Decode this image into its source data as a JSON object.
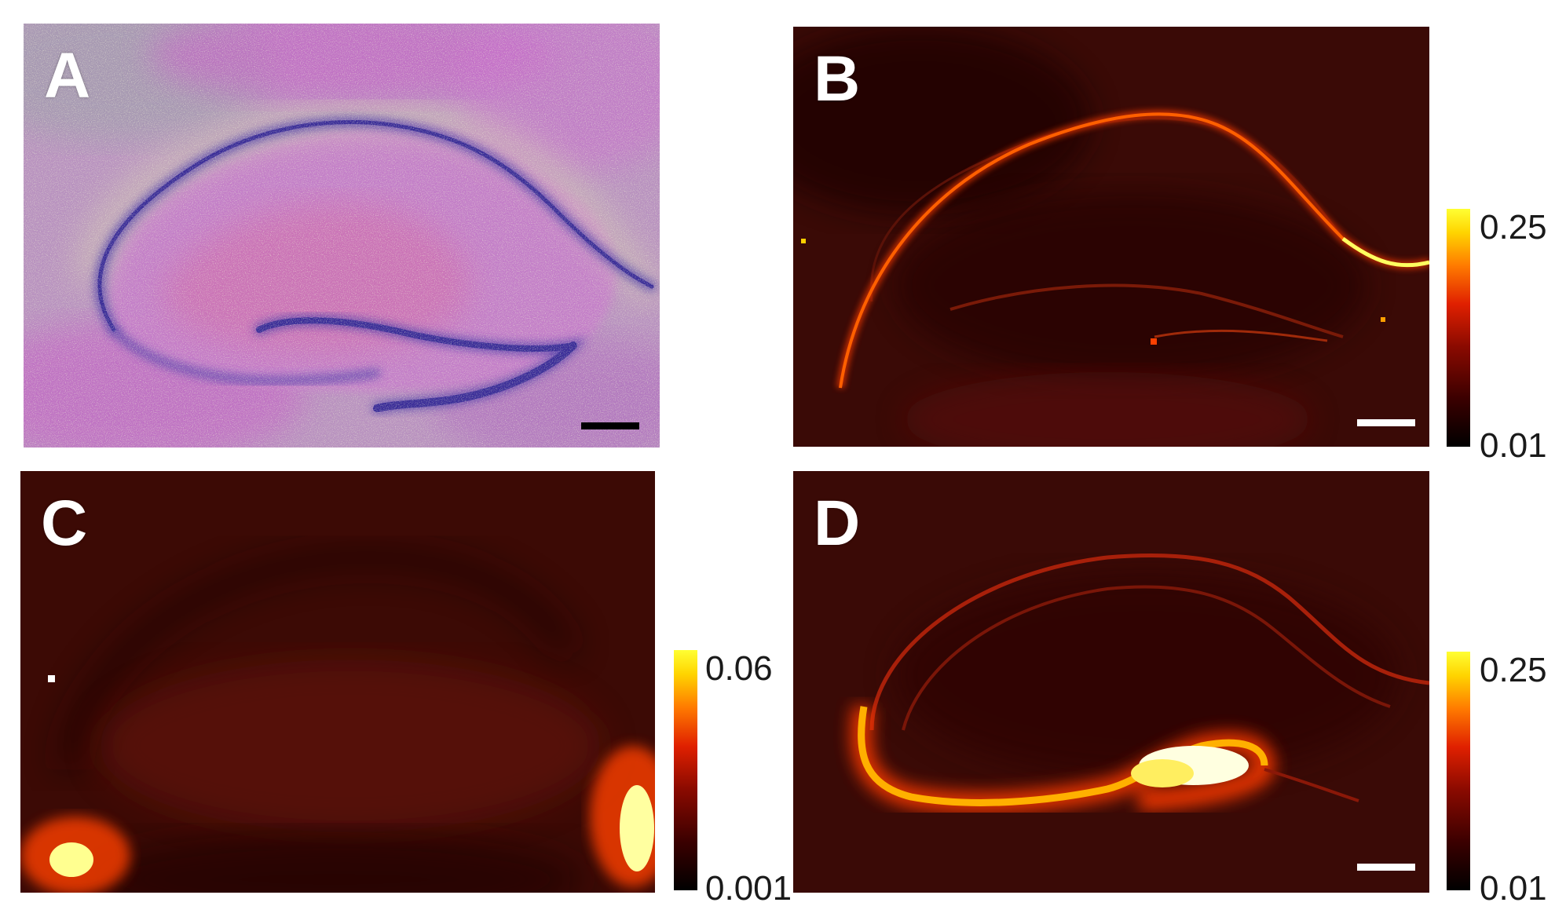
{
  "panels": {
    "a": {
      "letter": "A"
    },
    "b": {
      "letter": "B",
      "colorbar_max": "0.25",
      "colorbar_min": "0.01"
    },
    "c": {
      "letter": "C",
      "colorbar_max": "0.06",
      "colorbar_min": "0.001"
    },
    "d": {
      "letter": "D",
      "colorbar_max": "0.25",
      "colorbar_min": "0.01"
    }
  },
  "colors": {
    "stain_background": "#c488cc",
    "stain_cell_layer": "#4a3aa8",
    "heat_low": "#000000",
    "heat_mid": "#d01a00",
    "heat_high": "#ffff33"
  }
}
